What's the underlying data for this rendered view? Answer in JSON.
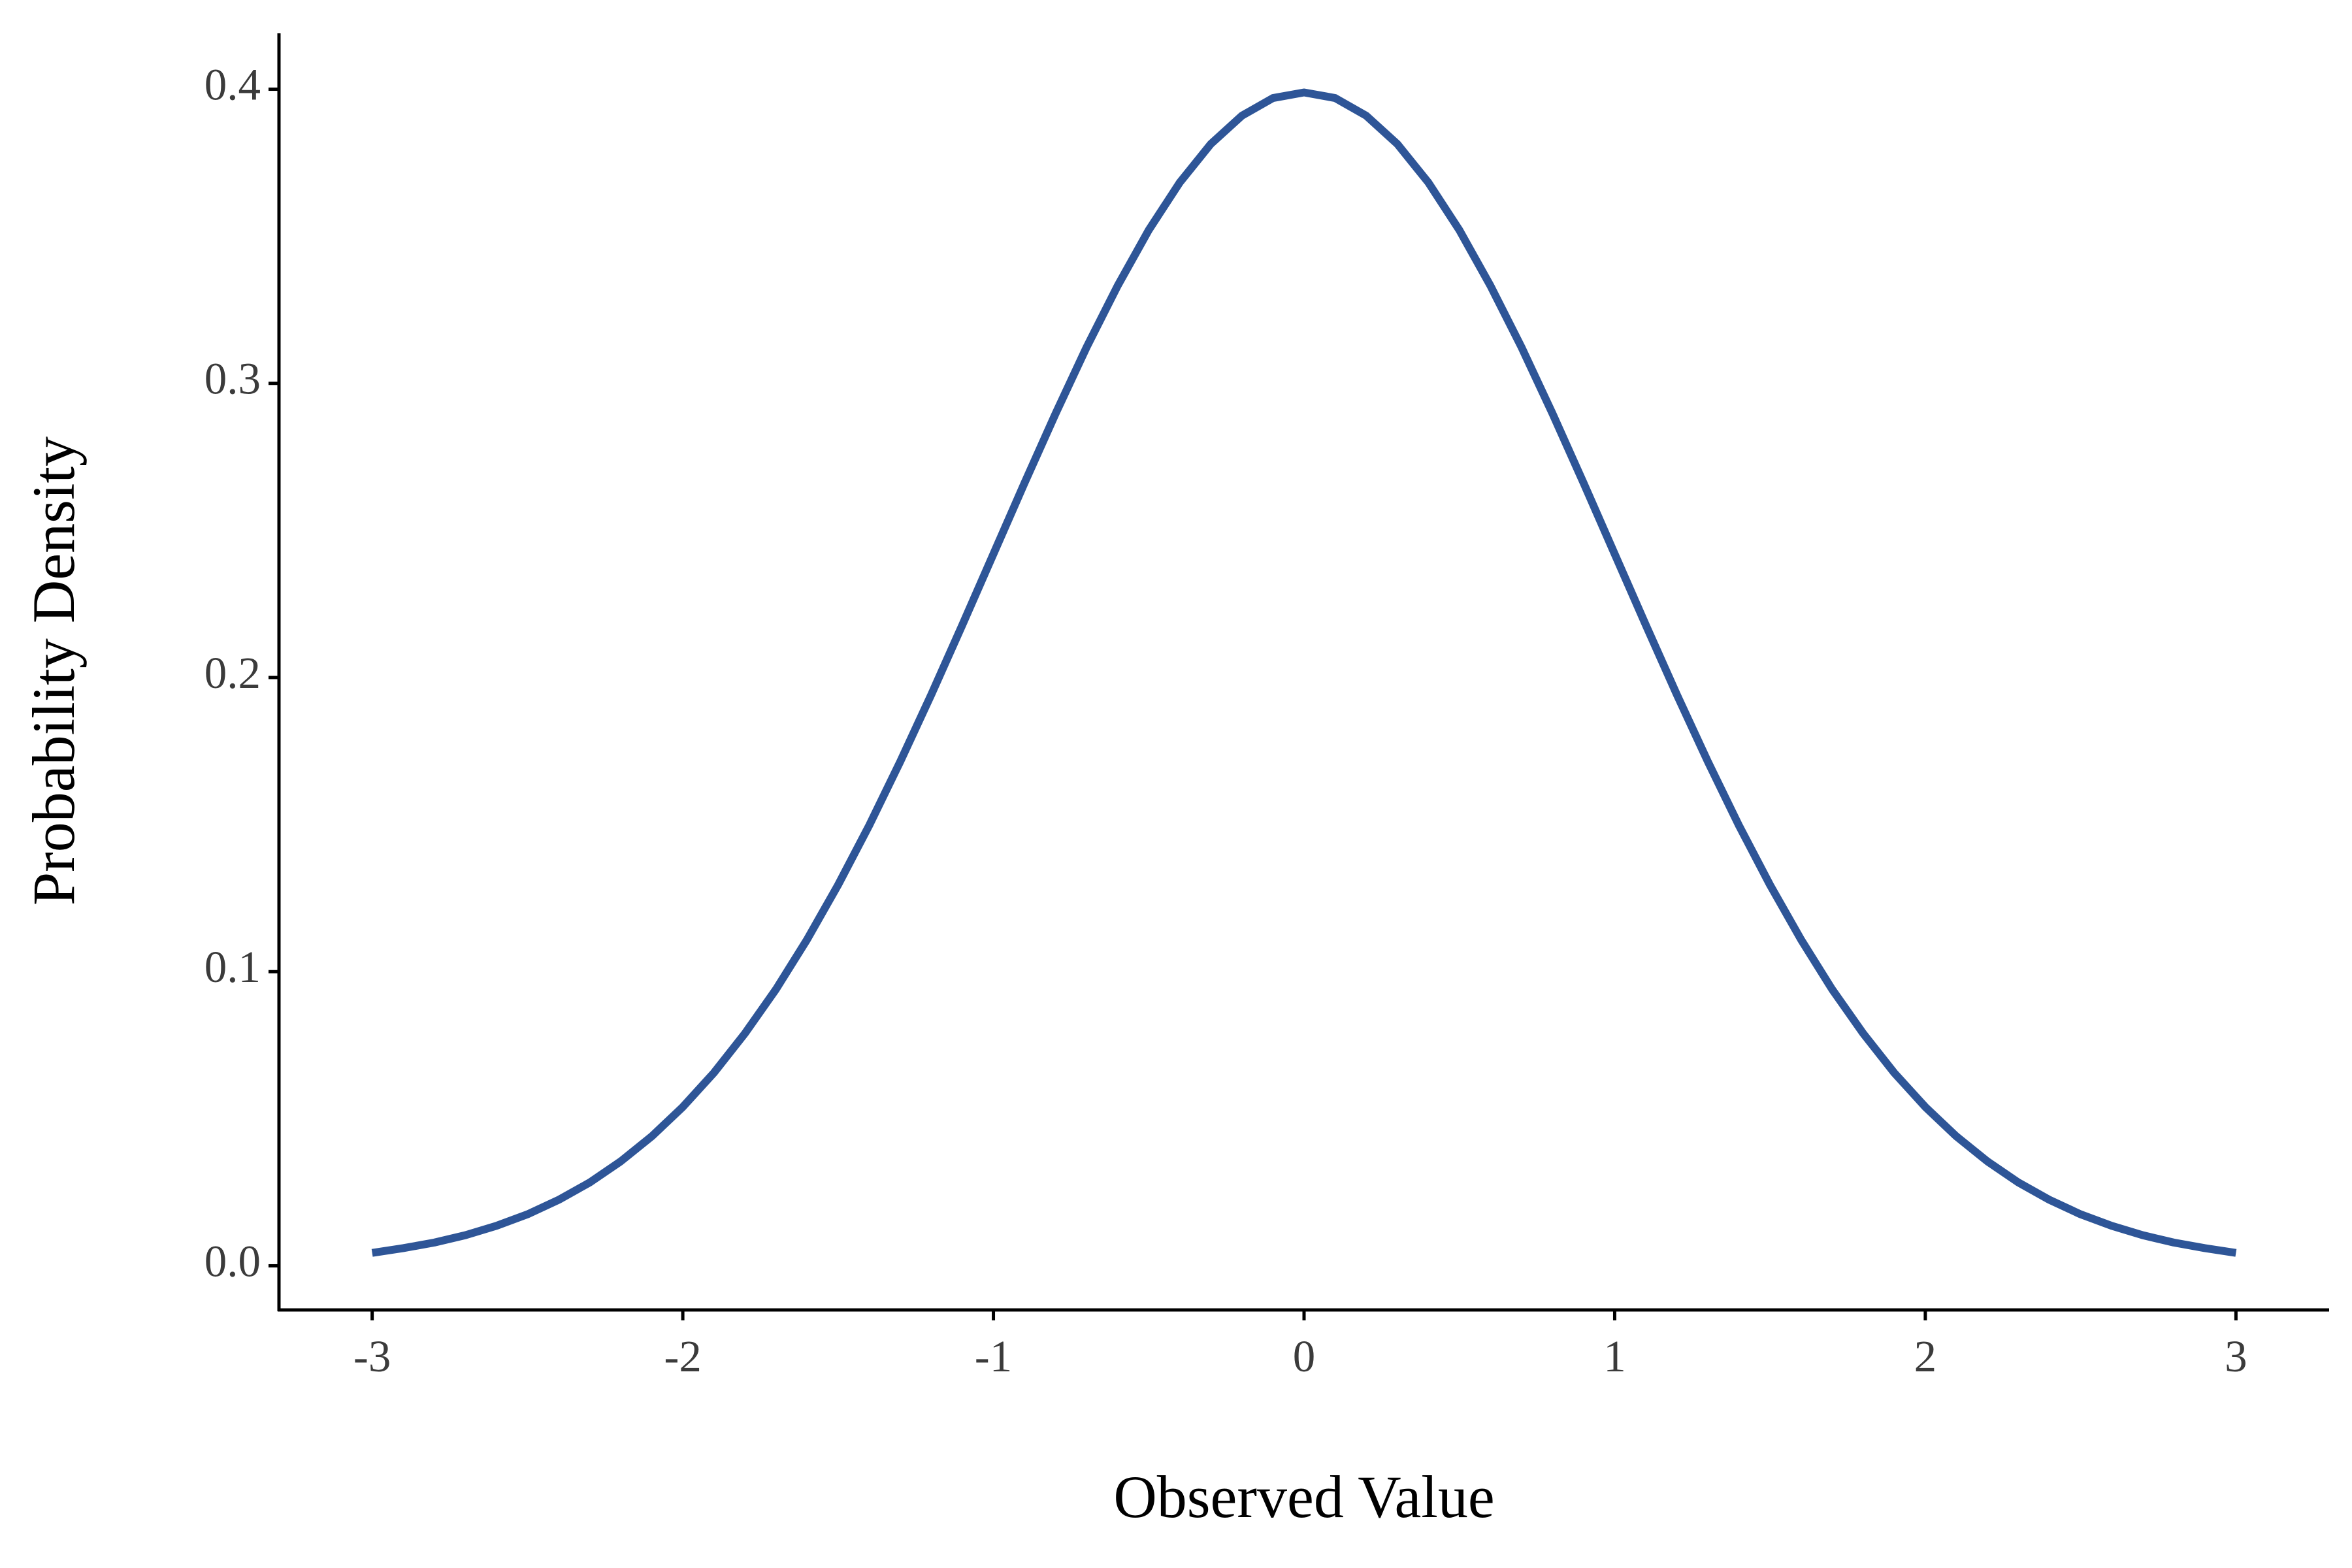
{
  "chart_data": {
    "type": "line",
    "x_label": "Observed Value",
    "y_label": "Probability Density",
    "x": [
      -3.0,
      -2.9,
      -2.8,
      -2.7,
      -2.6,
      -2.5,
      -2.4,
      -2.3,
      -2.2,
      -2.1,
      -2.0,
      -1.9,
      -1.8,
      -1.7,
      -1.6,
      -1.5,
      -1.4,
      -1.3,
      -1.2,
      -1.1,
      -1.0,
      -0.9,
      -0.8,
      -0.7,
      -0.6,
      -0.5,
      -0.4,
      -0.3,
      -0.2,
      -0.1,
      0.0,
      0.1,
      0.2,
      0.3,
      0.4,
      0.5,
      0.6,
      0.7,
      0.8,
      0.9,
      1.0,
      1.1,
      1.2,
      1.3,
      1.4,
      1.5,
      1.6,
      1.7,
      1.8,
      1.9,
      2.0,
      2.1,
      2.2,
      2.3,
      2.4,
      2.5,
      2.6,
      2.7,
      2.8,
      2.9,
      3.0
    ],
    "values": [
      0.0044,
      0.006,
      0.0079,
      0.0104,
      0.0136,
      0.0175,
      0.0224,
      0.0283,
      0.0355,
      0.044,
      0.054,
      0.0656,
      0.079,
      0.094,
      0.1109,
      0.1295,
      0.1497,
      0.1714,
      0.1942,
      0.2179,
      0.242,
      0.2661,
      0.2897,
      0.3123,
      0.3332,
      0.3521,
      0.3683,
      0.3814,
      0.391,
      0.397,
      0.3989,
      0.397,
      0.391,
      0.3814,
      0.3683,
      0.3521,
      0.3332,
      0.3123,
      0.2897,
      0.2661,
      0.242,
      0.2179,
      0.1942,
      0.1714,
      0.1497,
      0.1295,
      0.1109,
      0.094,
      0.079,
      0.0656,
      0.054,
      0.044,
      0.0355,
      0.0283,
      0.0224,
      0.0175,
      0.0136,
      0.0104,
      0.0079,
      0.006,
      0.0044
    ],
    "color": "#2e5597",
    "xlim": [
      -3.3,
      3.3
    ],
    "xticks": [
      -3,
      -2,
      -1,
      0,
      1,
      2,
      3
    ],
    "ylim": [
      -0.015,
      0.419
    ],
    "yticks": [
      {
        "value": 0,
        "label": "0.0"
      },
      0.1,
      0.2,
      0.3,
      0.4
    ],
    "grid": false
  }
}
